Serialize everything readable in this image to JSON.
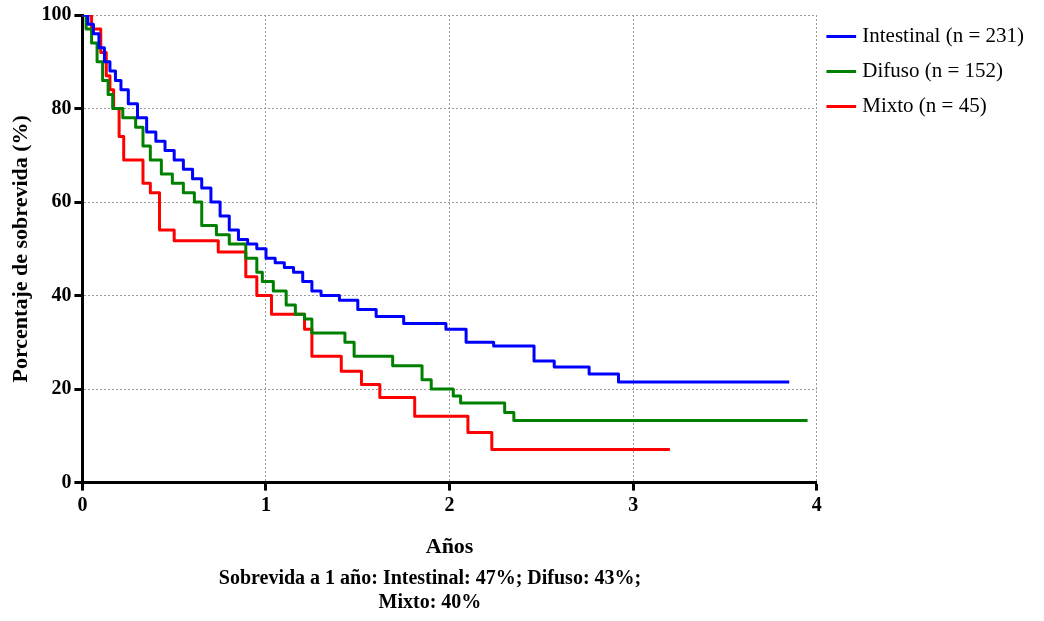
{
  "chart_data": {
    "type": "step",
    "xlabel": "Años",
    "ylabel": "Porcentaje de sobrevida (%)",
    "annotations": [
      "Sobrevida a 1 año: Intestinal: 47%; Difuso: 43%;\nMixto: 40%"
    ],
    "xlim": [
      0,
      4
    ],
    "xticks": [
      0,
      1,
      2,
      3,
      4
    ],
    "ylim": [
      0,
      100
    ],
    "yticks": [
      0,
      20,
      40,
      60,
      80,
      100
    ],
    "grid": true,
    "legend": "top right",
    "marker": "none",
    "line_style": "solid",
    "series": [
      {
        "name": "Intestinal (n = 231)",
        "color": "#0000ff",
        "x": [
          0,
          0.03,
          0.06,
          0.09,
          0.12,
          0.15,
          0.18,
          0.21,
          0.25,
          0.3,
          0.35,
          0.4,
          0.45,
          0.5,
          0.55,
          0.6,
          0.65,
          0.7,
          0.75,
          0.8,
          0.85,
          0.9,
          0.95,
          1.0,
          1.05,
          1.1,
          1.15,
          1.2,
          1.25,
          1.3,
          1.4,
          1.5,
          1.6,
          1.75,
          1.98,
          2.09,
          2.24,
          2.46,
          2.57,
          2.76,
          2.92,
          3.85
        ],
        "values": [
          100,
          98,
          96,
          93,
          90,
          88,
          86,
          84,
          81,
          78,
          75,
          73,
          71,
          69,
          67,
          65,
          63,
          60,
          57,
          54,
          52,
          51,
          50,
          48,
          47,
          46,
          45,
          43,
          41,
          40,
          39,
          37,
          35.5,
          34,
          32.8,
          30,
          29.2,
          26,
          24.7,
          23.2,
          21.5,
          21.5
        ]
      },
      {
        "name": "Difuso (n = 152)",
        "color": "#008000",
        "x": [
          0,
          0.02,
          0.05,
          0.08,
          0.11,
          0.14,
          0.165,
          0.22,
          0.29,
          0.33,
          0.37,
          0.43,
          0.49,
          0.55,
          0.61,
          0.65,
          0.73,
          0.8,
          0.89,
          0.95,
          0.98,
          1.04,
          1.11,
          1.16,
          1.21,
          1.25,
          1.43,
          1.48,
          1.69,
          1.85,
          1.9,
          2.02,
          2.06,
          2.3,
          2.35,
          3.95
        ],
        "values": [
          100,
          97,
          94,
          90,
          86,
          83,
          80,
          78,
          76,
          72,
          69,
          66,
          64,
          62,
          60,
          55,
          53,
          51,
          48,
          45,
          43,
          41,
          38,
          36,
          35,
          32,
          30,
          27,
          25,
          22,
          20,
          18.5,
          17,
          15,
          13.3,
          13.3
        ]
      },
      {
        "name": "Mixto (n = 45)",
        "color": "#ff0000",
        "x": [
          0,
          0.05,
          0.1,
          0.13,
          0.15,
          0.17,
          0.2,
          0.225,
          0.33,
          0.37,
          0.42,
          0.5,
          0.74,
          0.89,
          0.95,
          1.03,
          1.21,
          1.25,
          1.41,
          1.52,
          1.62,
          1.81,
          2.1,
          2.23,
          3.2
        ],
        "values": [
          100,
          97,
          92,
          87,
          84,
          80,
          74,
          69,
          64,
          62,
          54,
          51.7,
          49.3,
          44,
          40,
          36,
          32.8,
          27,
          23.8,
          21,
          18.2,
          14.2,
          10.7,
          7.1,
          7.1
        ]
      }
    ]
  }
}
